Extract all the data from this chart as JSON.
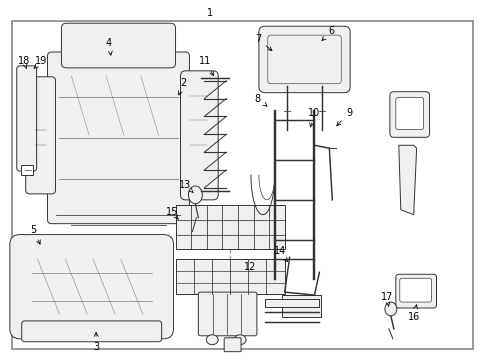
{
  "background_color": "#ffffff",
  "border_color": "#555555",
  "line_color": "#333333",
  "text_color": "#000000",
  "fig_width": 4.89,
  "fig_height": 3.6,
  "dpi": 100,
  "label_fs": 7.0,
  "lw": 0.7
}
